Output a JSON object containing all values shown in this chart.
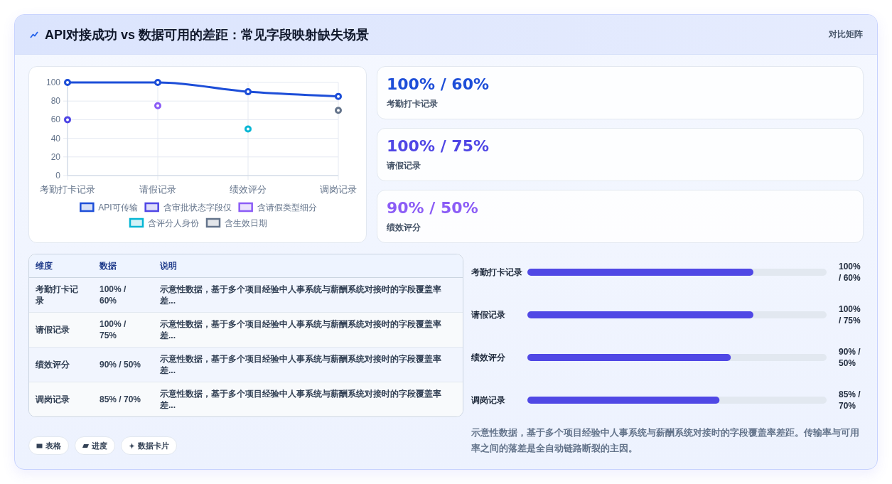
{
  "chart_data": [
    {
      "type": "other",
      "title": "API对接成功 vs 数据可用的差距：常见字段映射缺失场景",
      "annotations": [
        "对比矩阵"
      ]
    },
    {
      "type": "line",
      "categories": [
        "考勤打卡记录",
        "请假记录",
        "绩效评分",
        "调岗记录"
      ],
      "series": [
        {
          "name": "API可传输",
          "color": "#1d4ed8",
          "values": [
            100,
            100,
            90,
            85
          ]
        },
        {
          "name": "含审批状态字段仅",
          "type": "scatter",
          "color": "#4f46e5",
          "values": [
            60,
            null,
            null,
            null
          ]
        },
        {
          "name": "含请假类型细分",
          "type": "scatter",
          "color": "#8b5cf6",
          "values": [
            null,
            75,
            null,
            null
          ]
        },
        {
          "name": "含评分人身份",
          "type": "scatter",
          "color": "#06b6d4",
          "values": [
            null,
            null,
            50,
            null
          ]
        },
        {
          "name": "含生效日期",
          "type": "scatter",
          "color": "#64748b",
          "values": [
            null,
            null,
            null,
            70
          ]
        }
      ],
      "ylim": [
        0,
        100
      ],
      "yticks": [
        0,
        20,
        40,
        60,
        80,
        100
      ],
      "grid": true,
      "legend": "bottom",
      "marker": "circle"
    },
    {
      "type": "other",
      "categories": [
        "考勤打卡记录",
        "请假记录",
        "绩效评分"
      ],
      "value_labels": [
        "100% / 60%",
        "100% / 75%",
        "90% / 50%"
      ]
    },
    {
      "type": "other",
      "categories": [
        "维度",
        "数据",
        "说明"
      ],
      "cell_labels": [
        [
          "考勤打卡记录",
          "100% / 60%",
          "示意性数据，基于多个项目经验中人事系统与薪酬系统对接时的字段覆盖率差..."
        ],
        [
          "请假记录",
          "100% / 75%",
          "示意性数据，基于多个项目经验中人事系统与薪酬系统对接时的字段覆盖率差..."
        ],
        [
          "绩效评分",
          "90% / 50%",
          "示意性数据，基于多个项目经验中人事系统与薪酬系统对接时的字段覆盖率差..."
        ],
        [
          "调岗记录",
          "85% / 70%",
          "示意性数据，基于多个项目经验中人事系统与薪酬系统对接时的字段覆盖率差..."
        ]
      ]
    },
    {
      "type": "bar",
      "orientation": "horizontal",
      "categories": [
        "考勤打卡记录",
        "请假记录",
        "绩效评分",
        "调岗记录"
      ],
      "values": [
        100,
        100,
        90,
        85
      ],
      "color": "#5048e5",
      "value_labels": [
        "100% / 60%",
        "100% / 75%",
        "90% / 50%",
        "85% / 70%"
      ],
      "annotations": [
        "示意性数据，基于多个项目经验中人事系统与薪酬系统对接时的字段覆盖率差距。传输率与可用率之间的落差是全自动链路断裂的主因。"
      ]
    },
    {
      "type": "other",
      "annotations": [
        "表格",
        "进度",
        "数据卡片"
      ]
    }
  ]
}
